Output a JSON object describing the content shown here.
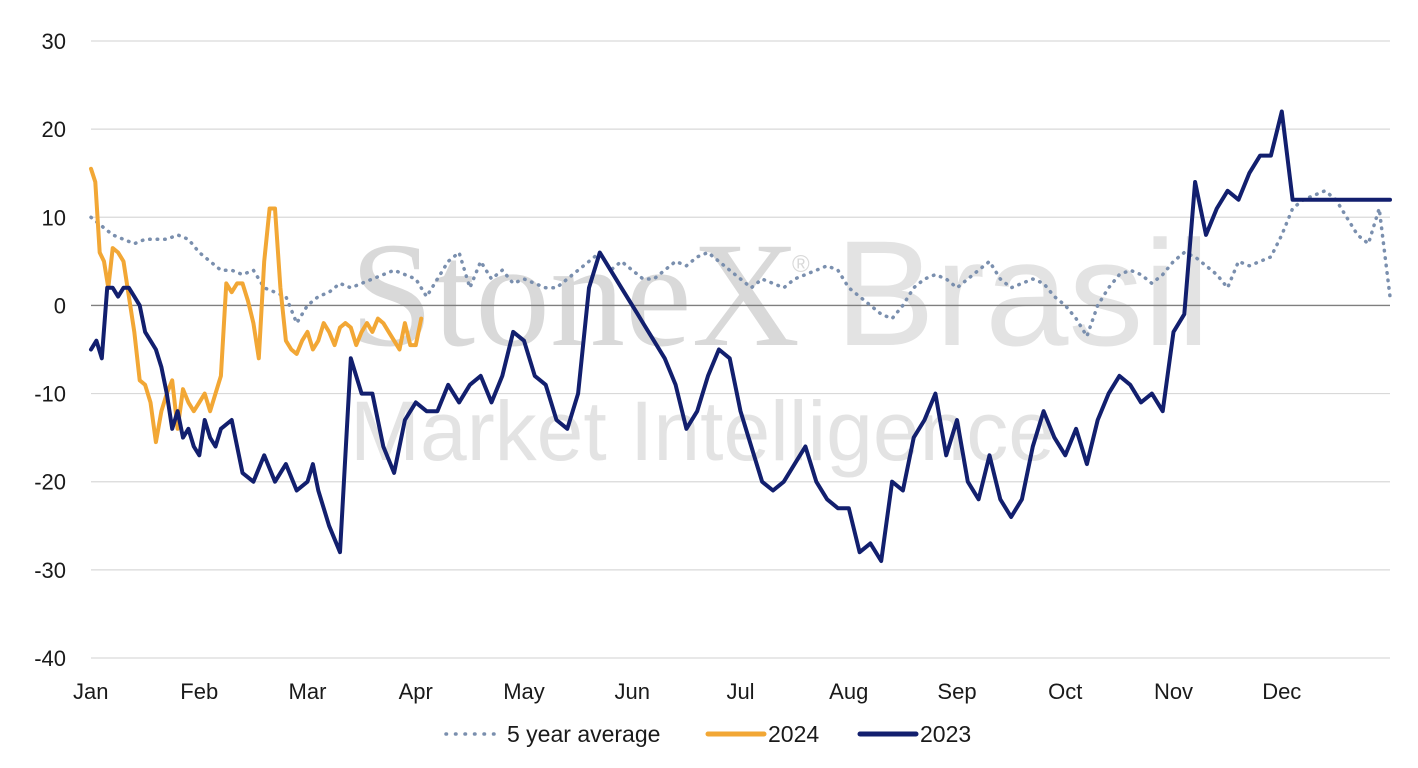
{
  "watermark": {
    "brand": "StoneX",
    "registered": "®",
    "region": "Brasil",
    "subtitle": "Market Intelligence"
  },
  "chart_data": {
    "type": "line",
    "title": "",
    "xlabel": "",
    "ylabel": "",
    "ylim": [
      -40,
      30
    ],
    "yticks": [
      30,
      20,
      10,
      0,
      -10,
      -20,
      -30,
      -40
    ],
    "categories": [
      "Jan",
      "Feb",
      "Mar",
      "Apr",
      "May",
      "Jun",
      "Jul",
      "Aug",
      "Sep",
      "Oct",
      "Nov",
      "Dec"
    ],
    "x_unit": "month index (0 = Jan 1, 12 = end of Dec)",
    "grid": true,
    "legend_position": "bottom",
    "series": [
      {
        "name": "5 year average",
        "color": "#7a8fae",
        "style": "dotted",
        "x": [
          0,
          0.1,
          0.2,
          0.3,
          0.4,
          0.5,
          0.6,
          0.7,
          0.8,
          0.9,
          1.0,
          1.1,
          1.2,
          1.3,
          1.4,
          1.5,
          1.6,
          1.7,
          1.8,
          1.9,
          2.0,
          2.1,
          2.2,
          2.3,
          2.4,
          2.5,
          2.6,
          2.7,
          2.8,
          2.9,
          3.0,
          3.1,
          3.2,
          3.3,
          3.4,
          3.5,
          3.6,
          3.7,
          3.8,
          3.9,
          4.0,
          4.1,
          4.2,
          4.3,
          4.4,
          4.5,
          4.6,
          4.7,
          4.8,
          4.9,
          5.0,
          5.1,
          5.2,
          5.3,
          5.4,
          5.5,
          5.6,
          5.7,
          5.8,
          5.9,
          6.0,
          6.1,
          6.2,
          6.3,
          6.4,
          6.5,
          6.6,
          6.7,
          6.8,
          6.9,
          7.0,
          7.1,
          7.2,
          7.3,
          7.4,
          7.5,
          7.6,
          7.7,
          7.8,
          7.9,
          8.0,
          8.1,
          8.2,
          8.3,
          8.4,
          8.5,
          8.6,
          8.7,
          8.8,
          8.9,
          9.0,
          9.1,
          9.2,
          9.3,
          9.4,
          9.5,
          9.6,
          9.7,
          9.8,
          9.9,
          10.0,
          10.1,
          10.2,
          10.3,
          10.4,
          10.5,
          10.6,
          10.7,
          10.8,
          10.9,
          11.0,
          11.1,
          11.2,
          11.3,
          11.4,
          11.5,
          11.6,
          11.7,
          11.8,
          11.9,
          12.0
        ],
        "y": [
          10,
          9,
          8,
          7.5,
          7,
          7.5,
          7.5,
          7.5,
          8,
          7.5,
          6,
          5,
          4,
          4,
          3.5,
          4,
          2,
          1.5,
          1,
          -2,
          0,
          1,
          1.5,
          2.5,
          2,
          2.5,
          3,
          3.5,
          4,
          3.5,
          3,
          1,
          3,
          5,
          6,
          2,
          5,
          3,
          4,
          2.5,
          3,
          2.5,
          2,
          2,
          3,
          4,
          5,
          6,
          4,
          5,
          4,
          3,
          3,
          4,
          5,
          4.5,
          5.5,
          6,
          5,
          4,
          3,
          2,
          3,
          2.5,
          2,
          3,
          3.5,
          4,
          4.5,
          4,
          2,
          1,
          0,
          -1,
          -1.5,
          0,
          2,
          3,
          3.5,
          3,
          2,
          3,
          4,
          5,
          3,
          2,
          2.5,
          3,
          2.5,
          1,
          0,
          -1.5,
          -3.5,
          0,
          2,
          3.5,
          4,
          3.5,
          2.5,
          3.5,
          5,
          6,
          5.5,
          4.5,
          3.5,
          2,
          5,
          4.5,
          5,
          5.5,
          8,
          11,
          12,
          12.5,
          13,
          12,
          10,
          8,
          7,
          11,
          1
        ]
      },
      {
        "name": "2024",
        "color": "#f2a735",
        "style": "solid",
        "x": [
          0,
          0.04,
          0.08,
          0.12,
          0.16,
          0.2,
          0.25,
          0.3,
          0.35,
          0.4,
          0.45,
          0.5,
          0.55,
          0.6,
          0.65,
          0.7,
          0.75,
          0.8,
          0.85,
          0.9,
          0.95,
          1.0,
          1.05,
          1.1,
          1.15,
          1.2,
          1.25,
          1.3,
          1.35,
          1.4,
          1.45,
          1.5,
          1.55,
          1.6,
          1.65,
          1.7,
          1.75,
          1.8,
          1.85,
          1.9,
          1.95,
          2.0,
          2.05,
          2.1,
          2.15,
          2.2,
          2.25,
          2.3,
          2.35,
          2.4,
          2.45,
          2.5,
          2.55,
          2.6,
          2.65,
          2.7,
          2.75,
          2.8,
          2.85,
          2.9,
          2.95,
          3.0,
          3.05
        ],
        "y": [
          15.5,
          14,
          6,
          5,
          2,
          6.5,
          6,
          5,
          1,
          -3,
          -8.5,
          -9,
          -11,
          -15.5,
          -12,
          -10,
          -8.5,
          -14,
          -9.5,
          -11,
          -12,
          -11,
          -10,
          -12,
          -10,
          -8,
          2.5,
          1.5,
          2.5,
          2.5,
          0.5,
          -2,
          -6,
          5,
          11,
          11,
          2,
          -4,
          -5,
          -5.5,
          -4,
          -3,
          -5,
          -4,
          -2,
          -3,
          -4.5,
          -2.5,
          -2,
          -2.5,
          -4.5,
          -3,
          -2,
          -3,
          -1.5,
          -2,
          -3,
          -4,
          -5,
          -2,
          -4.5,
          -4.5,
          -1.5
        ]
      },
      {
        "name": "2023",
        "color": "#121f6e",
        "style": "solid",
        "x": [
          0,
          0.05,
          0.1,
          0.15,
          0.2,
          0.25,
          0.3,
          0.35,
          0.4,
          0.45,
          0.5,
          0.55,
          0.6,
          0.65,
          0.7,
          0.75,
          0.8,
          0.85,
          0.9,
          0.95,
          1.0,
          1.05,
          1.1,
          1.15,
          1.2,
          1.3,
          1.4,
          1.5,
          1.6,
          1.7,
          1.8,
          1.9,
          2.0,
          2.05,
          2.1,
          2.2,
          2.3,
          2.4,
          2.5,
          2.6,
          2.7,
          2.8,
          2.9,
          3.0,
          3.1,
          3.2,
          3.3,
          3.4,
          3.5,
          3.6,
          3.7,
          3.8,
          3.9,
          4.0,
          4.1,
          4.2,
          4.3,
          4.4,
          4.5,
          4.6,
          4.7,
          4.8,
          4.9,
          5.0,
          5.05,
          5.1,
          5.2,
          5.3,
          5.4,
          5.5,
          5.6,
          5.7,
          5.8,
          5.9,
          6.0,
          6.1,
          6.2,
          6.3,
          6.4,
          6.5,
          6.6,
          6.7,
          6.8,
          6.9,
          7.0,
          7.1,
          7.2,
          7.3,
          7.4,
          7.5,
          7.6,
          7.7,
          7.8,
          7.9,
          8.0,
          8.1,
          8.2,
          8.3,
          8.4,
          8.5,
          8.6,
          8.7,
          8.8,
          8.9,
          9.0,
          9.1,
          9.2,
          9.3,
          9.4,
          9.5,
          9.6,
          9.7,
          9.8,
          9.9,
          10.0,
          10.1,
          10.2,
          10.3,
          10.4,
          10.5,
          10.6,
          10.7,
          10.8,
          10.9,
          11.0,
          11.1,
          11.2,
          11.3,
          11.4,
          11.5,
          11.6,
          11.7,
          11.8,
          11.9,
          12.0
        ],
        "y": [
          -5,
          -4,
          -6,
          2,
          2,
          1,
          2,
          2,
          1,
          0,
          -3,
          -4,
          -5,
          -7,
          -10,
          -14,
          -12,
          -15,
          -14,
          -16,
          -17,
          -13,
          -15,
          -16,
          -14,
          -13,
          -19,
          -20,
          -17,
          -20,
          -18,
          -21,
          -20,
          -18,
          -21,
          -25,
          -28,
          -6,
          -10,
          -10,
          -16,
          -19,
          -13,
          -11,
          -12,
          -12,
          -9,
          -11,
          -9,
          -8,
          -11,
          -8,
          -3,
          -4,
          -8,
          -9,
          -13,
          -14,
          -10,
          2,
          6,
          4,
          2,
          0,
          -1,
          -2,
          -4,
          -6,
          -9,
          -14,
          -12,
          -8,
          -5,
          -6,
          -12,
          -16,
          -20,
          -21,
          -20,
          -18,
          -16,
          -20,
          -22,
          -23,
          -23,
          -28,
          -27,
          -29,
          -20,
          -21,
          -15,
          -13,
          -10,
          -17,
          -13,
          -20,
          -22,
          -17,
          -22,
          -24,
          -22,
          -16,
          -12,
          -15,
          -17,
          -14,
          -18,
          -13,
          -10,
          -8,
          -9,
          -11,
          -10,
          -12,
          -3,
          -1,
          14,
          8,
          11,
          13,
          12,
          15,
          17,
          17,
          22,
          12,
          12,
          12,
          12,
          12,
          12,
          12,
          12,
          12,
          12
        ]
      }
    ]
  }
}
